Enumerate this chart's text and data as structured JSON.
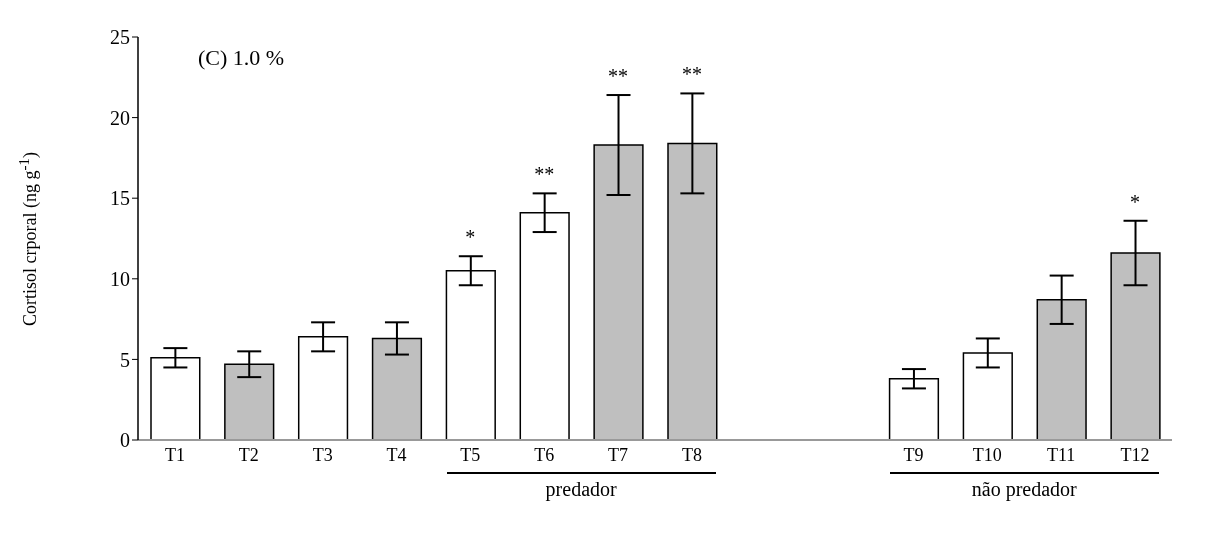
{
  "chart_data": {
    "type": "bar",
    "title": "(C) 1.0 %",
    "ylabel": "Cortisol crporal (ng g$^{-1}$)",
    "categories": [
      "T1",
      "T2",
      "T3",
      "T4",
      "T5",
      "T6",
      "T7",
      "T8",
      null,
      null,
      "T9",
      "T10",
      "T11",
      "T12"
    ],
    "values": [
      5.1,
      4.7,
      6.4,
      6.3,
      10.5,
      14.1,
      18.3,
      18.4,
      null,
      null,
      3.8,
      5.4,
      8.7,
      11.6
    ],
    "errors": [
      0.6,
      0.8,
      0.9,
      1.0,
      0.9,
      1.2,
      3.1,
      3.1,
      null,
      null,
      0.6,
      0.9,
      1.5,
      2.0
    ],
    "colors": [
      "#ffffff",
      "#bfbfbf",
      "#ffffff",
      "#bfbfbf",
      "#ffffff",
      "#ffffff",
      "#bfbfbf",
      "#bfbfbf",
      "#ffffff",
      "#ffffff",
      "#ffffff",
      "#ffffff",
      "#bfbfbf",
      "#bfbfbf"
    ],
    "ylim": [
      0,
      25
    ],
    "yticks": [
      0,
      5,
      10,
      15,
      20,
      25
    ],
    "grid": false,
    "legend": false,
    "value_labels": [
      null,
      null,
      null,
      null,
      "*",
      "**",
      "**",
      "**",
      null,
      null,
      null,
      null,
      null,
      "*"
    ],
    "annotations": [
      "predador",
      "não predador"
    ]
  }
}
